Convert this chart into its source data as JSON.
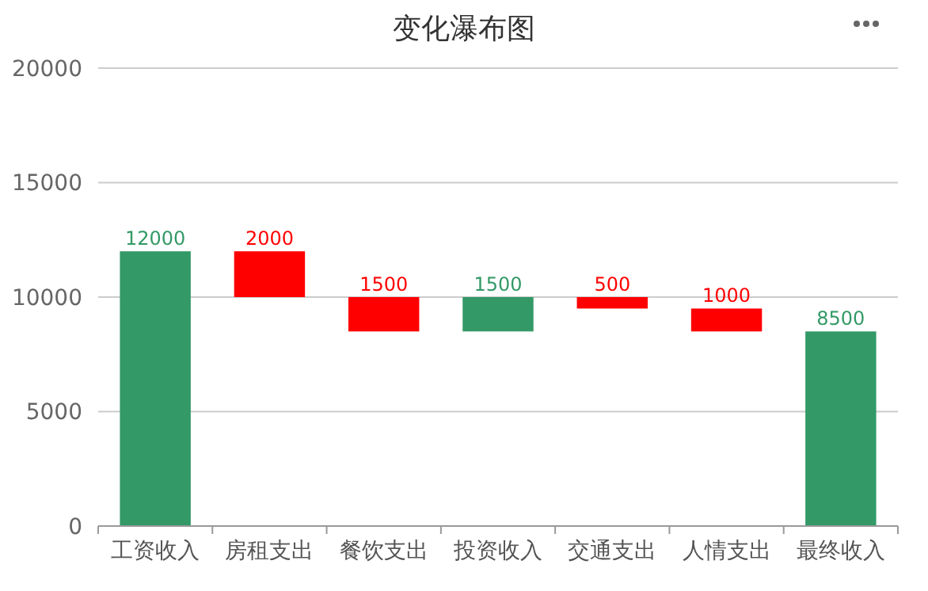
{
  "chart_data": {
    "type": "bar",
    "title": "变化瀑布图",
    "categories": [
      "工资收入",
      "房租支出",
      "餐饮支出",
      "投资收入",
      "交通支出",
      "人情支出",
      "最终收入"
    ],
    "values": [
      12000,
      2000,
      1500,
      1500,
      500,
      1000,
      8500
    ],
    "base": [
      0,
      10000,
      8500,
      8500,
      9500,
      8500,
      0
    ],
    "colors": [
      "#339966",
      "#ff0000",
      "#ff0000",
      "#339966",
      "#ff0000",
      "#ff0000",
      "#339966"
    ],
    "ylim": [
      0,
      20000
    ],
    "yticks": [
      0,
      5000,
      10000,
      15000,
      20000
    ],
    "grid": "y",
    "data_labels": true
  }
}
